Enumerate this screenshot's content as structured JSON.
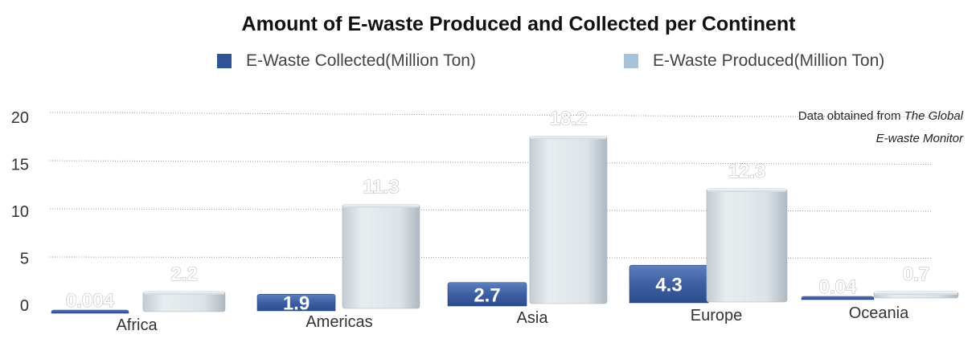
{
  "chart_data": {
    "type": "bar",
    "title": "Amount of E-waste Produced and Collected per Continent",
    "categories": [
      "Africa",
      "Americas",
      "Asia",
      "Europe",
      "Oceania"
    ],
    "series": [
      {
        "name": "E-Waste Collected(Million Ton)",
        "values": [
          0.004,
          1.9,
          2.7,
          4.3,
          0.04
        ],
        "labels": [
          "0.004",
          "1.9",
          "2.7",
          "4.3",
          "0.04"
        ],
        "color": "#3f63a8"
      },
      {
        "name": "E-Waste Produced(Million Ton)",
        "values": [
          2.2,
          11.3,
          18.2,
          12.3,
          0.7
        ],
        "labels": [
          "2.2",
          "11.3",
          "18.2",
          "12.3",
          "0.7"
        ],
        "color": "#d7dee3"
      }
    ],
    "yticks": [
      "0",
      "5",
      "10",
      "15",
      "20"
    ],
    "ylim": [
      0,
      20
    ],
    "grid": true,
    "legend": "top",
    "annotation": {
      "line1_prefix": "Data obtained from ",
      "line1_italic": "The Global",
      "line2_italic": "E-waste Monitor"
    }
  }
}
